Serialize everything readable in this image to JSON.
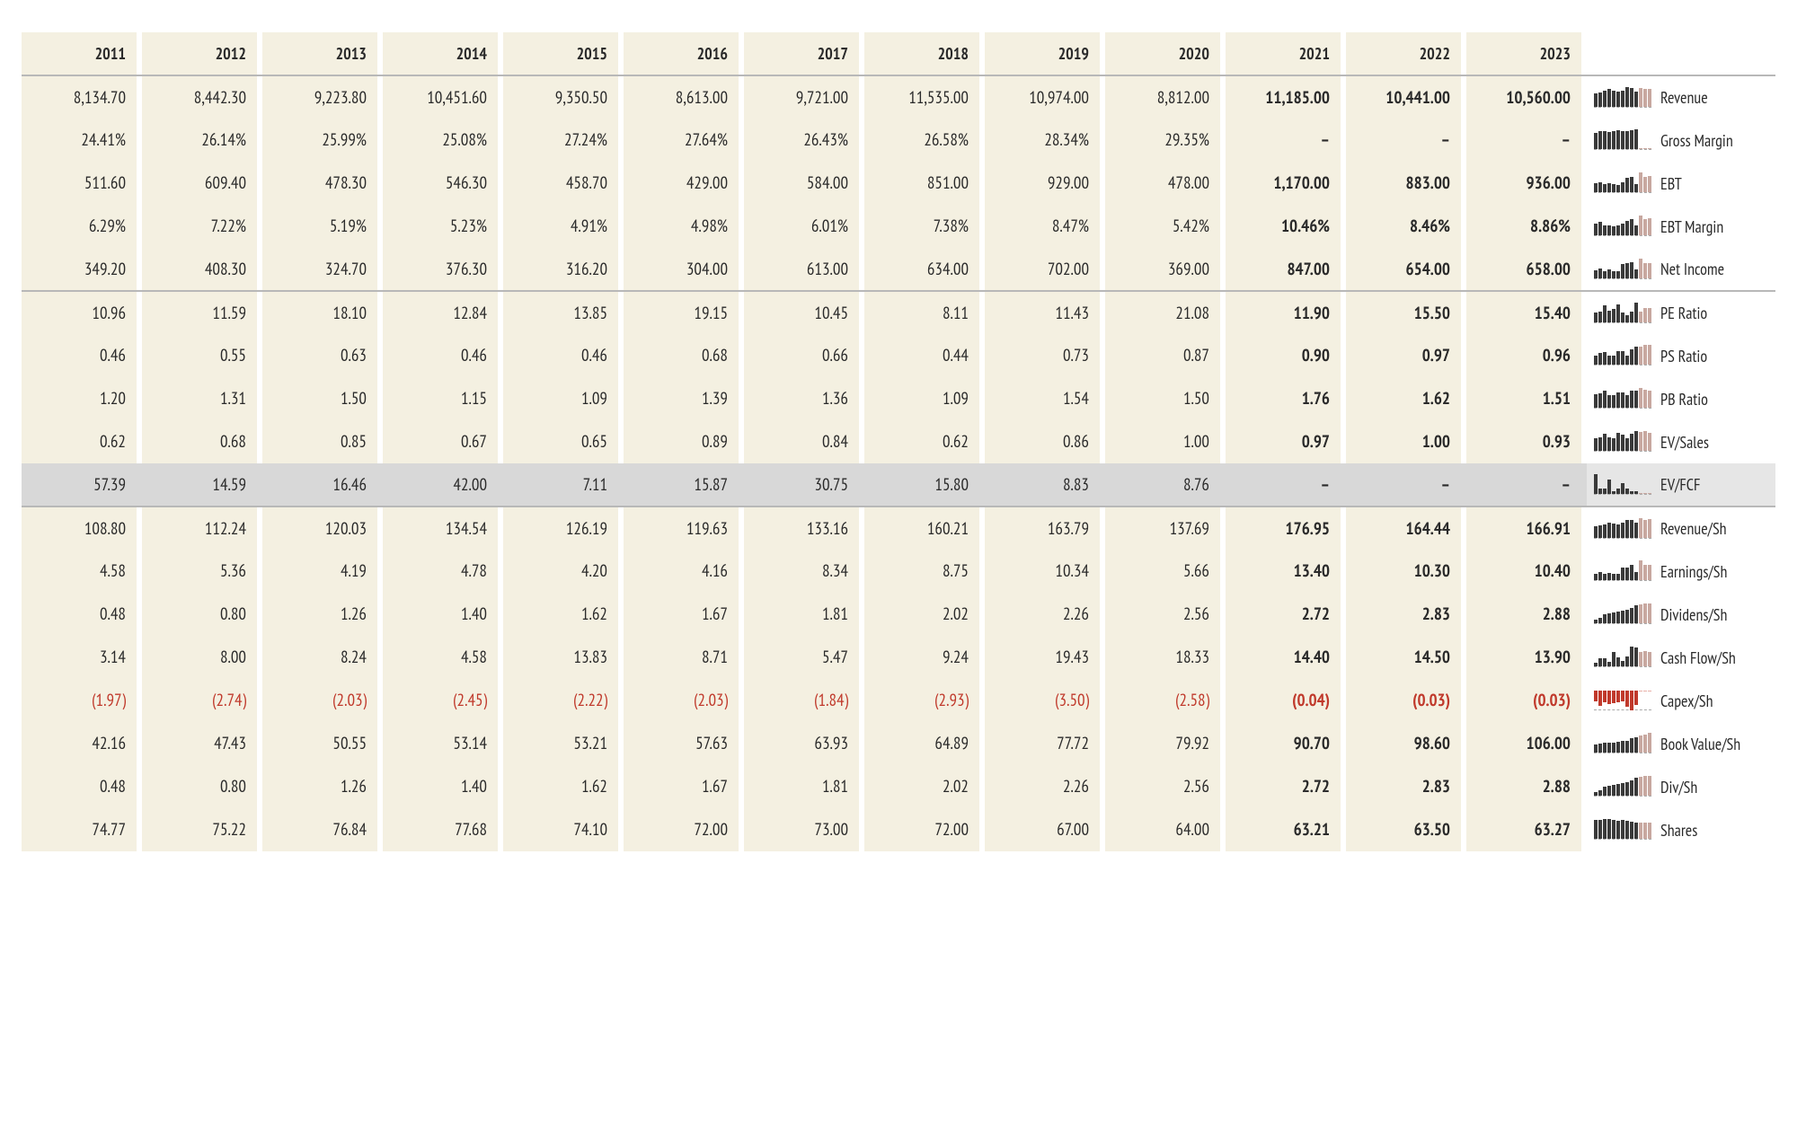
{
  "colors": {
    "column_bg": "#f4f0e1",
    "text": "#2a2a2a",
    "negative": "#c0392b",
    "bar_dark": "#3a3a3a",
    "bar_light": "#c8a8a0",
    "divider": "#b8b8b8",
    "highlight_row": "#d8d8d8"
  },
  "years": [
    "2011",
    "2012",
    "2013",
    "2014",
    "2015",
    "2016",
    "2017",
    "2018",
    "2019",
    "2020",
    "2021",
    "2022",
    "2023"
  ],
  "future_from_index": 10,
  "highlight_row_index": 9,
  "section_starts": [
    5,
    10
  ],
  "rows": [
    {
      "label": "Revenue",
      "values": [
        "8,134.70",
        "8,442.30",
        "9,223.80",
        "10,451.60",
        "9,350.50",
        "8,613.00",
        "9,721.00",
        "11,535.00",
        "10,974.00",
        "8,812.00",
        "11,185.00",
        "10,441.00",
        "10,560.00"
      ],
      "spark": [
        70,
        73,
        80,
        90,
        81,
        75,
        84,
        100,
        95,
        76,
        97,
        90,
        92
      ]
    },
    {
      "label": "Gross Margin",
      "values": [
        "24.41%",
        "26.14%",
        "25.99%",
        "25.08%",
        "27.24%",
        "27.64%",
        "26.43%",
        "26.58%",
        "28.34%",
        "29.35%",
        "–",
        "–",
        "–"
      ],
      "spark": [
        83,
        89,
        89,
        85,
        93,
        94,
        90,
        91,
        97,
        100,
        0,
        0,
        0
      ]
    },
    {
      "label": "EBT",
      "values": [
        "511.60",
        "609.40",
        "478.30",
        "546.30",
        "458.70",
        "429.00",
        "584.00",
        "851.00",
        "929.00",
        "478.00",
        "1,170.00",
        "883.00",
        "936.00"
      ],
      "spark": [
        44,
        52,
        41,
        47,
        39,
        37,
        50,
        73,
        79,
        41,
        100,
        75,
        80
      ]
    },
    {
      "label": "EBT Margin",
      "values": [
        "6.29%",
        "7.22%",
        "5.19%",
        "5.23%",
        "4.91%",
        "4.98%",
        "6.01%",
        "7.38%",
        "8.47%",
        "5.42%",
        "10.46%",
        "8.46%",
        "8.86%"
      ],
      "spark": [
        60,
        69,
        50,
        50,
        47,
        48,
        57,
        71,
        81,
        52,
        100,
        81,
        85
      ]
    },
    {
      "label": "Net Income",
      "values": [
        "349.20",
        "408.30",
        "324.70",
        "376.30",
        "316.20",
        "304.00",
        "613.00",
        "634.00",
        "702.00",
        "369.00",
        "847.00",
        "654.00",
        "658.00"
      ],
      "spark": [
        41,
        48,
        38,
        44,
        37,
        36,
        72,
        75,
        83,
        44,
        100,
        77,
        78
      ]
    },
    {
      "label": "PE Ratio",
      "values": [
        "10.96",
        "11.59",
        "18.10",
        "12.84",
        "13.85",
        "19.15",
        "10.45",
        "8.11",
        "11.43",
        "21.08",
        "11.90",
        "15.50",
        "15.40"
      ],
      "spark": [
        52,
        55,
        86,
        61,
        66,
        91,
        50,
        38,
        54,
        100,
        56,
        74,
        73
      ]
    },
    {
      "label": "PS Ratio",
      "values": [
        "0.46",
        "0.55",
        "0.63",
        "0.46",
        "0.46",
        "0.68",
        "0.66",
        "0.44",
        "0.73",
        "0.87",
        "0.90",
        "0.97",
        "0.96"
      ],
      "spark": [
        47,
        57,
        65,
        47,
        47,
        70,
        68,
        45,
        75,
        90,
        93,
        100,
        99
      ]
    },
    {
      "label": "PB Ratio",
      "values": [
        "1.20",
        "1.31",
        "1.50",
        "1.15",
        "1.09",
        "1.39",
        "1.36",
        "1.09",
        "1.54",
        "1.50",
        "1.76",
        "1.62",
        "1.51"
      ],
      "spark": [
        68,
        74,
        85,
        65,
        62,
        79,
        77,
        62,
        88,
        85,
        100,
        92,
        86
      ]
    },
    {
      "label": "EV/Sales",
      "values": [
        "0.62",
        "0.68",
        "0.85",
        "0.67",
        "0.65",
        "0.89",
        "0.84",
        "0.62",
        "0.86",
        "1.00",
        "0.97",
        "1.00",
        "0.93"
      ],
      "spark": [
        62,
        68,
        85,
        67,
        65,
        89,
        84,
        62,
        86,
        100,
        97,
        100,
        93
      ]
    },
    {
      "label": "EV/FCF",
      "values": [
        "57.39",
        "14.59",
        "16.46",
        "42.00",
        "7.11",
        "15.87",
        "30.75",
        "15.80",
        "8.83",
        "8.76",
        "–",
        "–",
        "–"
      ],
      "spark": [
        100,
        25,
        29,
        73,
        12,
        28,
        54,
        28,
        15,
        15,
        0,
        0,
        0
      ]
    },
    {
      "label": "Revenue/Sh",
      "values": [
        "108.80",
        "112.24",
        "120.03",
        "134.54",
        "126.19",
        "119.63",
        "133.16",
        "160.21",
        "163.79",
        "137.69",
        "176.95",
        "164.44",
        "166.91"
      ],
      "spark": [
        61,
        63,
        68,
        76,
        71,
        68,
        75,
        91,
        93,
        78,
        100,
        93,
        94
      ]
    },
    {
      "label": "Earnings/Sh",
      "values": [
        "4.58",
        "5.36",
        "4.19",
        "4.78",
        "4.20",
        "4.16",
        "8.34",
        "8.75",
        "10.34",
        "5.66",
        "13.40",
        "10.30",
        "10.40"
      ],
      "spark": [
        34,
        40,
        31,
        36,
        31,
        31,
        62,
        65,
        77,
        42,
        100,
        77,
        78
      ]
    },
    {
      "label": "Dividens/Sh",
      "values": [
        "0.48",
        "0.80",
        "1.26",
        "1.40",
        "1.62",
        "1.67",
        "1.81",
        "2.02",
        "2.26",
        "2.56",
        "2.72",
        "2.83",
        "2.88"
      ],
      "spark": [
        17,
        28,
        44,
        49,
        56,
        58,
        63,
        70,
        78,
        89,
        94,
        98,
        100
      ]
    },
    {
      "label": "Cash Flow/Sh",
      "values": [
        "3.14",
        "8.00",
        "8.24",
        "4.58",
        "13.83",
        "8.71",
        "5.47",
        "9.24",
        "19.43",
        "18.33",
        "14.40",
        "14.50",
        "13.90"
      ],
      "spark": [
        16,
        41,
        42,
        24,
        71,
        45,
        28,
        48,
        100,
        94,
        74,
        75,
        72
      ]
    },
    {
      "label": "Capex/Sh",
      "negative": true,
      "values": [
        "(1.97)",
        "(2.74)",
        "(2.03)",
        "(2.45)",
        "(2.22)",
        "(2.03)",
        "(1.84)",
        "(2.93)",
        "(3.50)",
        "(2.58)",
        "(0.04)",
        "(0.03)",
        "(0.03)"
      ],
      "spark": [
        56,
        78,
        58,
        70,
        63,
        58,
        53,
        84,
        100,
        74,
        1,
        1,
        1
      ],
      "down": true
    },
    {
      "label": "Book Value/Sh",
      "values": [
        "42.16",
        "47.43",
        "50.55",
        "53.14",
        "53.21",
        "57.63",
        "63.93",
        "64.89",
        "77.72",
        "79.92",
        "90.70",
        "98.60",
        "106.00"
      ],
      "spark": [
        40,
        45,
        48,
        50,
        50,
        54,
        60,
        61,
        73,
        75,
        86,
        93,
        100
      ]
    },
    {
      "label": "Div/Sh",
      "values": [
        "0.48",
        "0.80",
        "1.26",
        "1.40",
        "1.62",
        "1.67",
        "1.81",
        "2.02",
        "2.26",
        "2.56",
        "2.72",
        "2.83",
        "2.88"
      ],
      "spark": [
        17,
        28,
        44,
        49,
        56,
        58,
        63,
        70,
        78,
        89,
        94,
        98,
        100
      ]
    },
    {
      "label": "Shares",
      "values": [
        "74.77",
        "75.22",
        "76.84",
        "77.68",
        "74.10",
        "72.00",
        "73.00",
        "72.00",
        "67.00",
        "64.00",
        "63.21",
        "63.50",
        "63.27"
      ],
      "spark": [
        96,
        97,
        99,
        100,
        95,
        93,
        94,
        93,
        86,
        82,
        81,
        82,
        81
      ]
    }
  ]
}
